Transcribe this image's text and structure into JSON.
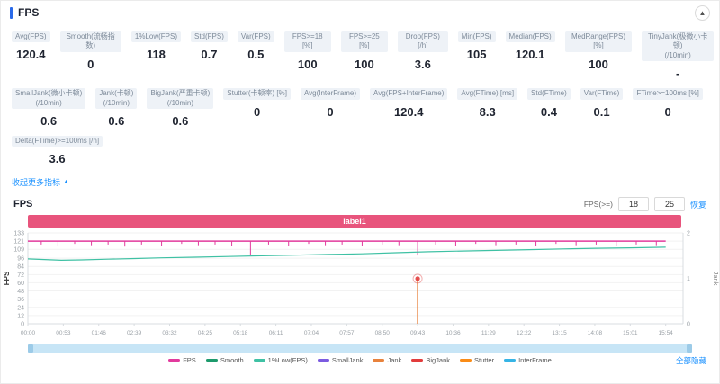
{
  "colors": {
    "accent": "#2a6ae9",
    "link": "#1890ff",
    "panel_border": "#ebebeb"
  },
  "header": {
    "title": "FPS",
    "collapse_icon": "▲"
  },
  "metrics_rows": [
    [
      {
        "label": "Avg(FPS)",
        "value": "120.4"
      },
      {
        "label": "Smooth(流畅指数)",
        "value": "0"
      },
      {
        "label": "1%Low(FPS)",
        "value": "118"
      },
      {
        "label": "Std(FPS)",
        "value": "0.7"
      },
      {
        "label": "Var(FPS)",
        "value": "0.5"
      },
      {
        "label": "FPS>=18 [%]",
        "value": "100"
      },
      {
        "label": "FPS>=25 [%]",
        "value": "100"
      },
      {
        "label": "Drop(FPS) [/h]",
        "value": "3.6"
      },
      {
        "label": "Min(FPS)",
        "value": "105"
      },
      {
        "label": "Median(FPS)",
        "value": "120.1"
      },
      {
        "label": "MedRange(FPS)[%]",
        "value": "100"
      },
      {
        "label": "TinyJank(极微小卡顿)\n(/10min)",
        "value": "-"
      }
    ],
    [
      {
        "label": "SmallJank(微小卡顿)\n(/10min)",
        "value": "0.6"
      },
      {
        "label": "Jank(卡顿)\n(/10min)",
        "value": "0.6"
      },
      {
        "label": "BigJank(严重卡顿)\n(/10min)",
        "value": "0.6"
      },
      {
        "label": "Stutter(卡顿率) [%]",
        "value": "0"
      },
      {
        "label": "Avg(InterFrame)",
        "value": "0"
      },
      {
        "label": "Avg(FPS+InterFrame)",
        "value": "120.4"
      },
      {
        "label": "Avg(FTime) [ms]",
        "value": "8.3"
      },
      {
        "label": "Std(FTime)",
        "value": "0.4"
      },
      {
        "label": "Var(FTime)",
        "value": "0.1"
      },
      {
        "label": "FTime>=100ms [%]",
        "value": "0"
      }
    ],
    [
      {
        "label": "Delta(FTime)>=100ms [/h]",
        "value": "3.6"
      }
    ]
  ],
  "metrics_collapse": {
    "text": "收起更多指标",
    "icon": "▲"
  },
  "chart": {
    "title": "FPS",
    "threshold_label": "FPS(>=)",
    "threshold_low": "18",
    "threshold_high": "25",
    "threshold_action": "恢复"
  },
  "chart_data": {
    "type": "line",
    "title": "FPS",
    "banner": {
      "label": "label1",
      "color": "#e8547c"
    },
    "x_tick_interval_sec": 53,
    "x_domain_max_sec": 980,
    "x_ticks": [
      "00:00",
      "00:53",
      "01:46",
      "02:39",
      "03:32",
      "04:25",
      "05:18",
      "06:11",
      "07:04",
      "07:57",
      "08:50",
      "09:43",
      "10:36",
      "11:29",
      "12:22",
      "13:15",
      "14:08",
      "15:01",
      "15:54"
    ],
    "y_left": {
      "label": "FPS",
      "max": 133,
      "ticks": [
        0,
        12,
        24,
        36,
        48,
        60,
        72,
        84,
        96,
        109,
        121,
        133
      ]
    },
    "y_right": {
      "label": "Jank",
      "max": 2,
      "ticks": [
        0,
        1,
        2
      ]
    },
    "series": [
      {
        "name": "FPS",
        "color": "#e23a9d",
        "type": "baseline",
        "base": 121,
        "dips": [
          [
            20,
            116
          ],
          [
            45,
            114
          ],
          [
            70,
            117
          ],
          [
            95,
            115
          ],
          [
            120,
            116
          ],
          [
            145,
            113
          ],
          [
            170,
            116
          ],
          [
            200,
            114
          ],
          [
            230,
            117
          ],
          [
            255,
            115
          ],
          [
            280,
            116
          ],
          [
            305,
            114
          ],
          [
            333,
            101
          ],
          [
            360,
            116
          ],
          [
            390,
            114
          ],
          [
            420,
            117
          ],
          [
            445,
            115
          ],
          [
            470,
            116
          ],
          [
            500,
            114
          ],
          [
            530,
            116
          ],
          [
            555,
            115
          ],
          [
            583,
            100
          ],
          [
            610,
            116
          ],
          [
            640,
            114
          ],
          [
            670,
            117
          ],
          [
            700,
            115
          ],
          [
            730,
            116
          ],
          [
            760,
            114
          ],
          [
            790,
            117
          ],
          [
            820,
            115
          ],
          [
            850,
            116
          ],
          [
            880,
            114
          ],
          [
            910,
            116
          ],
          [
            940,
            115
          ]
        ]
      },
      {
        "name": "1%Low(FPS)",
        "color": "#3fc1a4",
        "type": "curve",
        "points": [
          [
            0,
            95
          ],
          [
            25,
            94
          ],
          [
            50,
            93
          ],
          [
            80,
            93.5
          ],
          [
            120,
            94.5
          ],
          [
            160,
            95.5
          ],
          [
            200,
            96.5
          ],
          [
            250,
            97.5
          ],
          [
            300,
            98.5
          ],
          [
            350,
            99.5
          ],
          [
            400,
            100.5
          ],
          [
            450,
            101.5
          ],
          [
            500,
            102.5
          ],
          [
            550,
            104
          ],
          [
            600,
            105.5
          ],
          [
            650,
            106.5
          ],
          [
            700,
            107.5
          ],
          [
            750,
            108.5
          ],
          [
            800,
            109.5
          ],
          [
            850,
            110.5
          ],
          [
            900,
            111.2
          ],
          [
            954,
            112
          ]
        ]
      },
      {
        "name": "Jank",
        "color": "#e8823c",
        "type": "event",
        "axis": "right",
        "events": [
          [
            583,
            1
          ]
        ]
      },
      {
        "name": "BigJank",
        "color": "#e23c3c",
        "type": "marker",
        "markers": [
          [
            583,
            66
          ]
        ]
      }
    ]
  },
  "legend": {
    "items": [
      {
        "label": "FPS",
        "color": "#e23a9d"
      },
      {
        "label": "Smooth",
        "color": "#1d9a6c"
      },
      {
        "label": "1%Low(FPS)",
        "color": "#3fc1a4"
      },
      {
        "label": "SmallJank",
        "color": "#7b5be0"
      },
      {
        "label": "Jank",
        "color": "#e8823c"
      },
      {
        "label": "BigJank",
        "color": "#e23c3c"
      },
      {
        "label": "Stutter",
        "color": "#fa8c16"
      },
      {
        "label": "InterFrame",
        "color": "#36b4e5"
      }
    ],
    "hide_all": "全部隐藏"
  }
}
